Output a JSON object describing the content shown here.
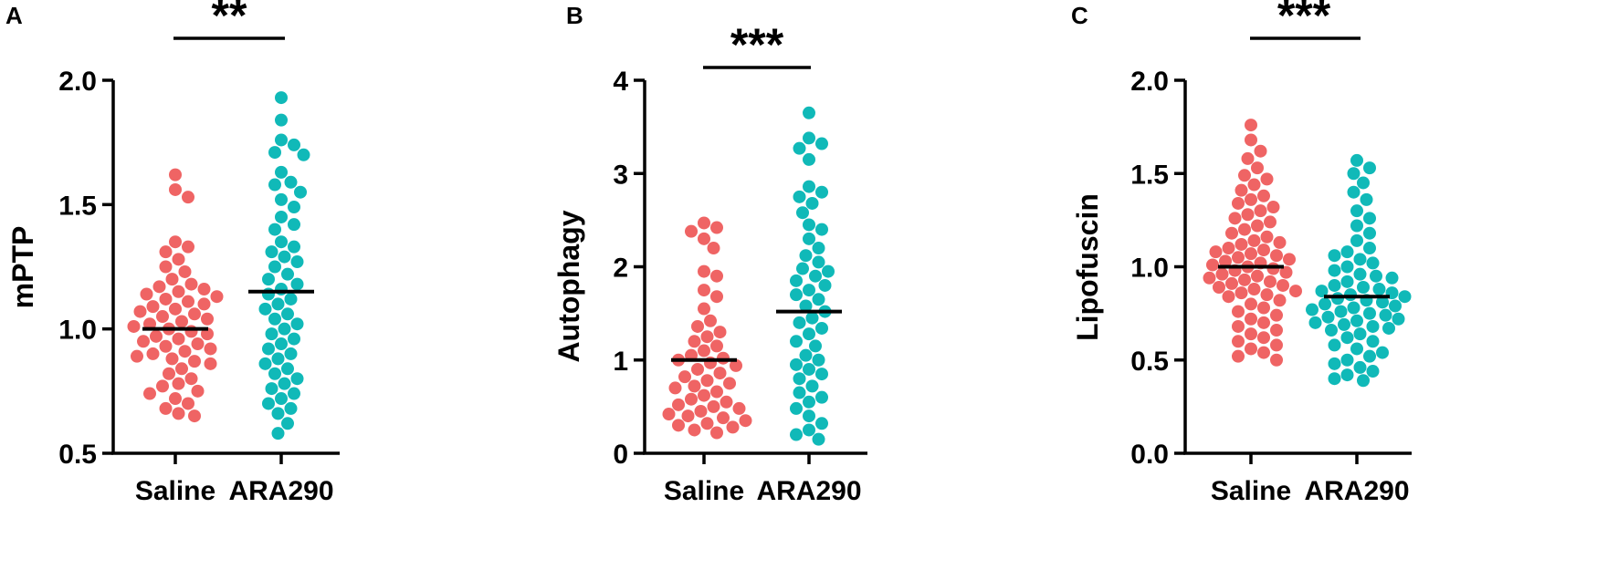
{
  "colors": {
    "saline": "#EF6464",
    "ara290": "#10B9B8",
    "axis": "#000000"
  },
  "chart_data": [
    {
      "panel_label": "A",
      "type": "scatter",
      "ylabel": "mPTP",
      "ylim": [
        0.5,
        2.0
      ],
      "yticks": [
        0.5,
        1.0,
        1.5,
        2.0
      ],
      "ytick_labels": [
        "0.5",
        "1.0",
        "1.5",
        "2.0"
      ],
      "categories": [
        "Saline",
        "ARA290"
      ],
      "significance": "**",
      "series": [
        {
          "name": "Saline",
          "mean": 1.0,
          "values": [
            1.62,
            1.56,
            1.53,
            1.35,
            1.33,
            1.31,
            1.28,
            1.25,
            1.23,
            1.2,
            1.18,
            1.17,
            1.16,
            1.15,
            1.14,
            1.13,
            1.12,
            1.11,
            1.1,
            1.09,
            1.08,
            1.07,
            1.06,
            1.05,
            1.04,
            1.03,
            1.02,
            1.01,
            1.0,
            0.99,
            0.98,
            0.97,
            0.96,
            0.95,
            0.94,
            0.93,
            0.92,
            0.91,
            0.9,
            0.89,
            0.88,
            0.87,
            0.86,
            0.84,
            0.82,
            0.8,
            0.78,
            0.77,
            0.75,
            0.74,
            0.72,
            0.7,
            0.68,
            0.66,
            0.65
          ]
        },
        {
          "name": "ARA290",
          "mean": 1.15,
          "values": [
            1.93,
            1.84,
            1.76,
            1.74,
            1.71,
            1.7,
            1.63,
            1.59,
            1.58,
            1.55,
            1.52,
            1.49,
            1.45,
            1.42,
            1.4,
            1.35,
            1.33,
            1.31,
            1.29,
            1.27,
            1.25,
            1.22,
            1.2,
            1.18,
            1.16,
            1.14,
            1.12,
            1.1,
            1.08,
            1.06,
            1.04,
            1.02,
            1.0,
            0.98,
            0.96,
            0.94,
            0.92,
            0.9,
            0.88,
            0.86,
            0.84,
            0.82,
            0.8,
            0.78,
            0.76,
            0.74,
            0.72,
            0.7,
            0.68,
            0.66,
            0.62,
            0.58
          ]
        }
      ]
    },
    {
      "panel_label": "B",
      "type": "scatter",
      "ylabel": "Autophagy",
      "ylim": [
        0,
        4
      ],
      "yticks": [
        0,
        1,
        2,
        3,
        4
      ],
      "ytick_labels": [
        "0",
        "1",
        "2",
        "3",
        "4"
      ],
      "categories": [
        "Saline",
        "ARA290"
      ],
      "significance": "***",
      "series": [
        {
          "name": "Saline",
          "mean": 1.0,
          "values": [
            2.47,
            2.42,
            2.38,
            2.3,
            2.2,
            1.95,
            1.9,
            1.75,
            1.68,
            1.55,
            1.42,
            1.36,
            1.3,
            1.25,
            1.2,
            1.15,
            1.1,
            1.05,
            1.02,
            1.0,
            0.97,
            0.94,
            0.9,
            0.86,
            0.82,
            0.78,
            0.75,
            0.72,
            0.7,
            0.66,
            0.62,
            0.58,
            0.55,
            0.52,
            0.5,
            0.48,
            0.45,
            0.42,
            0.4,
            0.38,
            0.35,
            0.32,
            0.3,
            0.28,
            0.25,
            0.22
          ]
        },
        {
          "name": "ARA290",
          "mean": 1.52,
          "values": [
            3.65,
            3.38,
            3.32,
            3.27,
            3.15,
            2.86,
            2.8,
            2.75,
            2.68,
            2.58,
            2.45,
            2.4,
            2.3,
            2.2,
            2.12,
            2.05,
            1.98,
            1.95,
            1.9,
            1.85,
            1.8,
            1.75,
            1.7,
            1.65,
            1.58,
            1.52,
            1.45,
            1.4,
            1.34,
            1.28,
            1.2,
            1.15,
            1.05,
            1.0,
            0.95,
            0.9,
            0.85,
            0.8,
            0.72,
            0.65,
            0.6,
            0.55,
            0.48,
            0.4,
            0.32,
            0.25,
            0.2,
            0.15
          ]
        }
      ]
    },
    {
      "panel_label": "C",
      "type": "scatter",
      "ylabel": "Lipofuscin",
      "ylim": [
        0.0,
        2.0
      ],
      "yticks": [
        0.0,
        0.5,
        1.0,
        1.5,
        2.0
      ],
      "ytick_labels": [
        "0.0",
        "0.5",
        "1.0",
        "1.5",
        "2.0"
      ],
      "categories": [
        "Saline",
        "ARA290"
      ],
      "significance": "***",
      "series": [
        {
          "name": "Saline",
          "mean": 1.0,
          "values": [
            1.76,
            1.68,
            1.62,
            1.58,
            1.53,
            1.49,
            1.47,
            1.44,
            1.41,
            1.38,
            1.36,
            1.34,
            1.32,
            1.3,
            1.28,
            1.26,
            1.24,
            1.22,
            1.2,
            1.18,
            1.16,
            1.14,
            1.13,
            1.12,
            1.1,
            1.09,
            1.08,
            1.07,
            1.06,
            1.05,
            1.04,
            1.03,
            1.02,
            1.01,
            1.0,
            0.99,
            0.98,
            0.97,
            0.96,
            0.95,
            0.94,
            0.93,
            0.92,
            0.91,
            0.9,
            0.89,
            0.88,
            0.87,
            0.86,
            0.85,
            0.84,
            0.82,
            0.8,
            0.78,
            0.76,
            0.74,
            0.72,
            0.7,
            0.68,
            0.66,
            0.64,
            0.62,
            0.6,
            0.58,
            0.56,
            0.54,
            0.52,
            0.5
          ]
        },
        {
          "name": "ARA290",
          "mean": 0.84,
          "values": [
            1.57,
            1.53,
            1.5,
            1.45,
            1.4,
            1.36,
            1.3,
            1.26,
            1.22,
            1.18,
            1.14,
            1.1,
            1.08,
            1.06,
            1.04,
            1.02,
            1.0,
            0.98,
            0.96,
            0.95,
            0.94,
            0.92,
            0.9,
            0.89,
            0.88,
            0.87,
            0.86,
            0.85,
            0.84,
            0.83,
            0.82,
            0.81,
            0.8,
            0.79,
            0.78,
            0.77,
            0.76,
            0.75,
            0.74,
            0.73,
            0.72,
            0.71,
            0.7,
            0.69,
            0.68,
            0.67,
            0.66,
            0.64,
            0.62,
            0.6,
            0.58,
            0.56,
            0.54,
            0.52,
            0.5,
            0.48,
            0.46,
            0.44,
            0.42,
            0.4,
            0.39
          ]
        }
      ]
    }
  ]
}
